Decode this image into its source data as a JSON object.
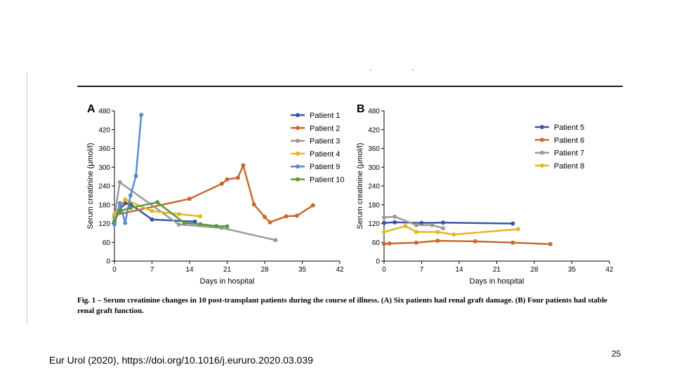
{
  "slide": {
    "top_marks": "' '",
    "caption_lead": "Fig. 1 – Serum creatinine changes in 10 post-transplant patients during the course of illness.",
    "caption_rest": " (A) Six patients had renal graft damage. (B) Four patients had stable renal graft function.",
    "source": "Eur Urol (2020), https://doi.org/10.1016/j.eururo.2020.03.039",
    "page_number": "25"
  },
  "chart_data": [
    {
      "panel": "A",
      "type": "line",
      "xlabel": "Days in hospital",
      "ylabel": "Serum creatinine (μmol/l)",
      "xlim": [
        0,
        42
      ],
      "ylim": [
        0,
        480
      ],
      "xticks": [
        0,
        7,
        14,
        21,
        28,
        35,
        42
      ],
      "yticks": [
        0,
        60,
        120,
        180,
        240,
        300,
        360,
        420,
        480
      ],
      "legend_position": "top-right",
      "series": [
        {
          "name": "Patient 1",
          "color": "#3a55a6",
          "points": [
            [
              0,
              125
            ],
            [
              1,
              165
            ],
            [
              2,
              185
            ],
            [
              3,
              182
            ],
            [
              7,
              133
            ],
            [
              15,
              126
            ]
          ]
        },
        {
          "name": "Patient 2",
          "color": "#c96a2c",
          "points": [
            [
              0,
              147
            ],
            [
              14,
              199
            ],
            [
              20,
              247
            ],
            [
              21,
              261
            ],
            [
              23,
              266
            ],
            [
              24,
              306
            ],
            [
              26,
              181
            ],
            [
              28,
              141
            ],
            [
              29,
              124
            ],
            [
              32,
              143
            ],
            [
              34,
              145
            ],
            [
              37,
              178
            ]
          ]
        },
        {
          "name": "Patient 3",
          "color": "#9a9a9a",
          "points": [
            [
              0,
              140
            ],
            [
              1,
              252
            ],
            [
              12,
              117
            ],
            [
              20,
              106
            ],
            [
              30,
              67
            ]
          ]
        },
        {
          "name": "Patient 4",
          "color": "#e2b822",
          "points": [
            [
              0,
              150
            ],
            [
              2,
              197
            ],
            [
              7,
              160
            ],
            [
              12,
              150
            ],
            [
              16,
              143
            ]
          ]
        },
        {
          "name": "Patient 9",
          "color": "#5a8ccc",
          "points": [
            [
              0,
              117
            ],
            [
              1,
              185
            ],
            [
              2,
              122
            ],
            [
              3,
              210
            ],
            [
              4,
              272
            ],
            [
              5,
              467
            ]
          ]
        },
        {
          "name": "Patient 10",
          "color": "#5a9b3a",
          "points": [
            [
              0,
              128
            ],
            [
              1,
              160
            ],
            [
              3,
              170
            ],
            [
              8,
              188
            ],
            [
              13,
              122
            ],
            [
              16,
              118
            ],
            [
              19,
              112
            ],
            [
              21,
              111
            ]
          ]
        }
      ]
    },
    {
      "panel": "B",
      "type": "line",
      "xlabel": "Days in hospital",
      "ylabel": "Serum creatinine (μmol/l)",
      "xlim": [
        0,
        42
      ],
      "ylim": [
        0,
        480
      ],
      "xticks": [
        0,
        7,
        14,
        21,
        28,
        35,
        42
      ],
      "yticks": [
        0,
        60,
        120,
        180,
        240,
        300,
        360,
        420,
        480
      ],
      "legend_position": "top-right",
      "series": [
        {
          "name": "Patient 5",
          "color": "#3a55a6",
          "points": [
            [
              0,
              122
            ],
            [
              2,
              124
            ],
            [
              7,
              122
            ],
            [
              11,
              123
            ],
            [
              24,
              120
            ]
          ]
        },
        {
          "name": "Patient 6",
          "color": "#c96a2c",
          "points": [
            [
              0,
              55
            ],
            [
              1,
              56
            ],
            [
              6,
              59
            ],
            [
              10,
              65
            ],
            [
              17,
              63
            ],
            [
              24,
              59
            ],
            [
              31,
              54
            ]
          ]
        },
        {
          "name": "Patient 7",
          "color": "#9a9a9a",
          "points": [
            [
              0,
              140
            ],
            [
              2,
              142
            ],
            [
              6,
              115
            ],
            [
              9,
              115
            ],
            [
              11,
              105
            ]
          ]
        },
        {
          "name": "Patient 8",
          "color": "#e2b822",
          "points": [
            [
              0,
              93
            ],
            [
              4,
              112
            ],
            [
              6,
              93
            ],
            [
              10,
              93
            ],
            [
              13,
              85
            ],
            [
              25,
              102
            ]
          ]
        }
      ]
    }
  ]
}
